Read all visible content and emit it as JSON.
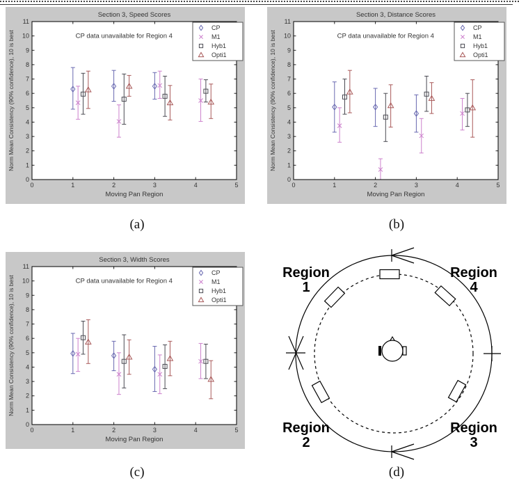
{
  "figure": {
    "captions": [
      {
        "label": "(a)"
      },
      {
        "label": "(b)"
      },
      {
        "label": "(c)"
      },
      {
        "label": "(d)"
      }
    ]
  },
  "colors": {
    "panel_background": "#c8c8c8",
    "plot_background": "#ffffff",
    "cp_series": "#6868b0",
    "m1_series": "#cc80cc",
    "hyb1_series": "#4a4a52",
    "opti1_series": "#a85858"
  },
  "chart_data": [
    {
      "id": "a",
      "type": "errorbar",
      "title": "Section 3, Speed Scores",
      "xlabel": "Moving Pan Region",
      "ylabel": "Norm Mean Consistency (90% confidence), 10 is best",
      "annotation": "CP data unavailable for Region 4",
      "xlim": [
        0,
        5
      ],
      "ylim": [
        0,
        11
      ],
      "xticks": [
        0,
        1,
        2,
        3,
        4,
        5
      ],
      "yticks": [
        0,
        1,
        2,
        3,
        4,
        5,
        6,
        7,
        8,
        9,
        10,
        11
      ],
      "legend_position": "top-right",
      "grid": false,
      "series": [
        {
          "name": "CP",
          "marker": "diamond",
          "color": "#6868b0",
          "points": [
            {
              "x": 1.0,
              "y": 6.3,
              "lo": 4.9,
              "hi": 7.8
            },
            {
              "x": 2.0,
              "y": 6.5,
              "lo": 5.45,
              "hi": 7.6
            },
            {
              "x": 3.0,
              "y": 6.5,
              "lo": 5.6,
              "hi": 7.45
            }
          ]
        },
        {
          "name": "M1",
          "marker": "x",
          "color": "#cc80cc",
          "points": [
            {
              "x": 1.125,
              "y": 5.35,
              "lo": 4.2,
              "hi": 6.5
            },
            {
              "x": 2.125,
              "y": 4.05,
              "lo": 2.95,
              "hi": 5.2
            },
            {
              "x": 3.125,
              "y": 6.55,
              "lo": 5.65,
              "hi": 7.55
            },
            {
              "x": 4.125,
              "y": 5.5,
              "lo": 4.05,
              "hi": 7.0
            }
          ]
        },
        {
          "name": "Hyb1",
          "marker": "square",
          "color": "#4a4a52",
          "points": [
            {
              "x": 1.25,
              "y": 5.95,
              "lo": 4.55,
              "hi": 7.4
            },
            {
              "x": 2.25,
              "y": 5.6,
              "lo": 3.85,
              "hi": 7.35
            },
            {
              "x": 3.25,
              "y": 5.8,
              "lo": 4.4,
              "hi": 7.2
            },
            {
              "x": 4.25,
              "y": 6.15,
              "lo": 5.4,
              "hi": 6.95
            }
          ]
        },
        {
          "name": "Opti1",
          "marker": "triangle",
          "color": "#a85858",
          "points": [
            {
              "x": 1.375,
              "y": 6.25,
              "lo": 4.95,
              "hi": 7.55
            },
            {
              "x": 2.375,
              "y": 6.5,
              "lo": 5.8,
              "hi": 7.25
            },
            {
              "x": 3.375,
              "y": 5.35,
              "lo": 4.15,
              "hi": 6.55
            },
            {
              "x": 4.375,
              "y": 5.4,
              "lo": 4.25,
              "hi": 6.65
            }
          ]
        }
      ]
    },
    {
      "id": "b",
      "type": "errorbar",
      "title": "Section 3, Distance Scores",
      "xlabel": "Moving Pan Region",
      "ylabel": "Norm Mean Consistency (90% confidence), 10 is best",
      "annotation": "CP data unavailable for Region 4",
      "xlim": [
        0,
        5
      ],
      "ylim": [
        0,
        11
      ],
      "xticks": [
        0,
        1,
        2,
        3,
        4,
        5
      ],
      "yticks": [
        0,
        1,
        2,
        3,
        4,
        5,
        6,
        7,
        8,
        9,
        10,
        11
      ],
      "legend_position": "top-right",
      "grid": false,
      "series": [
        {
          "name": "CP",
          "marker": "diamond",
          "color": "#6868b0",
          "points": [
            {
              "x": 1.0,
              "y": 5.05,
              "lo": 3.3,
              "hi": 6.8
            },
            {
              "x": 2.0,
              "y": 5.05,
              "lo": 3.7,
              "hi": 6.35
            },
            {
              "x": 3.0,
              "y": 4.6,
              "lo": 3.3,
              "hi": 5.9
            }
          ]
        },
        {
          "name": "M1",
          "marker": "x",
          "color": "#cc80cc",
          "points": [
            {
              "x": 1.125,
              "y": 3.75,
              "lo": 2.6,
              "hi": 5.0
            },
            {
              "x": 2.125,
              "y": 0.7,
              "lo": -0.3,
              "hi": 1.45
            },
            {
              "x": 3.125,
              "y": 3.05,
              "lo": 1.85,
              "hi": 4.25
            },
            {
              "x": 4.125,
              "y": 4.6,
              "lo": 3.45,
              "hi": 5.65
            }
          ]
        },
        {
          "name": "Hyb1",
          "marker": "square",
          "color": "#4a4a52",
          "points": [
            {
              "x": 1.25,
              "y": 5.75,
              "lo": 4.55,
              "hi": 7.0
            },
            {
              "x": 2.25,
              "y": 4.35,
              "lo": 2.65,
              "hi": 6.0
            },
            {
              "x": 3.25,
              "y": 5.95,
              "lo": 4.75,
              "hi": 7.2
            },
            {
              "x": 4.25,
              "y": 4.85,
              "lo": 3.7,
              "hi": 6.0
            }
          ]
        },
        {
          "name": "Opti1",
          "marker": "triangle",
          "color": "#a85858",
          "points": [
            {
              "x": 1.375,
              "y": 6.1,
              "lo": 4.65,
              "hi": 7.6
            },
            {
              "x": 2.375,
              "y": 5.15,
              "lo": 3.65,
              "hi": 6.6
            },
            {
              "x": 3.375,
              "y": 5.65,
              "lo": 4.6,
              "hi": 6.75
            },
            {
              "x": 4.375,
              "y": 5.0,
              "lo": 2.95,
              "hi": 6.95
            }
          ]
        }
      ]
    },
    {
      "id": "c",
      "type": "errorbar",
      "title": "Section 3, Width Scores",
      "xlabel": "Moving Pan Region",
      "ylabel": "Norm Mean Consistency (90% confidence), 10 is best",
      "annotation": "CP data unavailable for Region 4",
      "xlim": [
        0,
        5
      ],
      "ylim": [
        0,
        11
      ],
      "xticks": [
        0,
        1,
        2,
        3,
        4,
        5
      ],
      "yticks": [
        0,
        1,
        2,
        3,
        4,
        5,
        6,
        7,
        8,
        9,
        10,
        11
      ],
      "legend_position": "top-right",
      "grid": false,
      "series": [
        {
          "name": "CP",
          "marker": "diamond",
          "color": "#6868b0",
          "points": [
            {
              "x": 1.0,
              "y": 4.95,
              "lo": 3.55,
              "hi": 6.35
            },
            {
              "x": 2.0,
              "y": 4.8,
              "lo": 3.75,
              "hi": 5.8
            },
            {
              "x": 3.0,
              "y": 3.85,
              "lo": 2.3,
              "hi": 5.45
            }
          ]
        },
        {
          "name": "M1",
          "marker": "x",
          "color": "#cc80cc",
          "points": [
            {
              "x": 1.125,
              "y": 4.9,
              "lo": 3.7,
              "hi": 6.0
            },
            {
              "x": 2.125,
              "y": 3.5,
              "lo": 2.1,
              "hi": 5.0
            },
            {
              "x": 3.125,
              "y": 3.5,
              "lo": 2.15,
              "hi": 4.85
            },
            {
              "x": 4.125,
              "y": 4.4,
              "lo": 3.2,
              "hi": 5.65
            }
          ]
        },
        {
          "name": "Hyb1",
          "marker": "square",
          "color": "#4a4a52",
          "points": [
            {
              "x": 1.25,
              "y": 6.05,
              "lo": 4.9,
              "hi": 7.2
            },
            {
              "x": 2.25,
              "y": 4.4,
              "lo": 2.55,
              "hi": 6.25
            },
            {
              "x": 3.25,
              "y": 4.05,
              "lo": 2.5,
              "hi": 5.55
            },
            {
              "x": 4.25,
              "y": 4.4,
              "lo": 3.2,
              "hi": 5.6
            }
          ]
        },
        {
          "name": "Opti1",
          "marker": "triangle",
          "color": "#a85858",
          "points": [
            {
              "x": 1.375,
              "y": 5.75,
              "lo": 4.25,
              "hi": 7.3
            },
            {
              "x": 2.375,
              "y": 4.7,
              "lo": 3.5,
              "hi": 5.9
            },
            {
              "x": 3.375,
              "y": 4.6,
              "lo": 3.4,
              "hi": 5.8
            },
            {
              "x": 4.375,
              "y": 3.15,
              "lo": 1.8,
              "hi": 4.45
            }
          ]
        }
      ]
    }
  ],
  "diagram": {
    "description": "Listener at center of circular speaker layout, moving pan regions 1-4",
    "labels": [
      {
        "word": "Region",
        "num": "1"
      },
      {
        "word": "Region",
        "num": "4"
      },
      {
        "word": "Region",
        "num": "2"
      },
      {
        "word": "Region",
        "num": "3"
      }
    ]
  }
}
